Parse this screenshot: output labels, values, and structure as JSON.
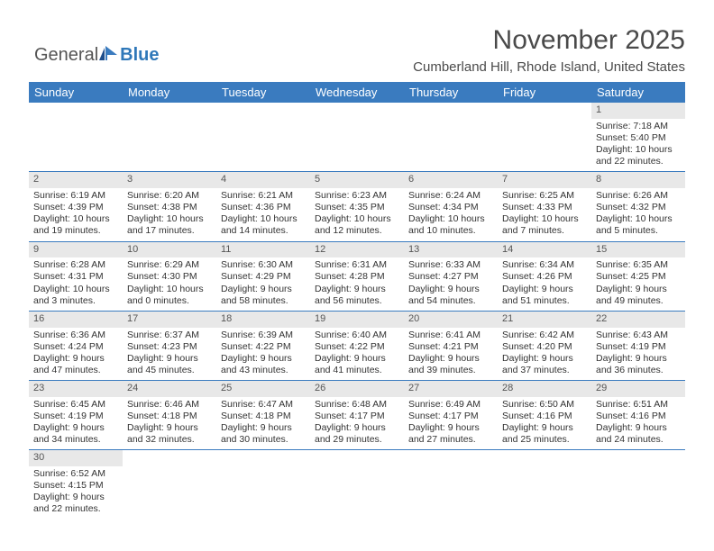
{
  "logo": {
    "part1": "General",
    "part2": "Blue"
  },
  "header": {
    "title": "November 2025",
    "location": "Cumberland Hill, Rhode Island, United States"
  },
  "colors": {
    "header_bg": "#3a7bbf",
    "header_text": "#ffffff",
    "daynum_bg": "#e8e8e8",
    "row_border": "#3a7bbf",
    "title_color": "#4a4a4a",
    "body_text": "#333333",
    "logo_blue": "#2f78b9"
  },
  "weekdays": [
    "Sunday",
    "Monday",
    "Tuesday",
    "Wednesday",
    "Thursday",
    "Friday",
    "Saturday"
  ],
  "weeks": [
    [
      null,
      null,
      null,
      null,
      null,
      null,
      {
        "d": "1",
        "sr": "Sunrise: 7:18 AM",
        "ss": "Sunset: 5:40 PM",
        "dl1": "Daylight: 10 hours",
        "dl2": "and 22 minutes."
      }
    ],
    [
      {
        "d": "2",
        "sr": "Sunrise: 6:19 AM",
        "ss": "Sunset: 4:39 PM",
        "dl1": "Daylight: 10 hours",
        "dl2": "and 19 minutes."
      },
      {
        "d": "3",
        "sr": "Sunrise: 6:20 AM",
        "ss": "Sunset: 4:38 PM",
        "dl1": "Daylight: 10 hours",
        "dl2": "and 17 minutes."
      },
      {
        "d": "4",
        "sr": "Sunrise: 6:21 AM",
        "ss": "Sunset: 4:36 PM",
        "dl1": "Daylight: 10 hours",
        "dl2": "and 14 minutes."
      },
      {
        "d": "5",
        "sr": "Sunrise: 6:23 AM",
        "ss": "Sunset: 4:35 PM",
        "dl1": "Daylight: 10 hours",
        "dl2": "and 12 minutes."
      },
      {
        "d": "6",
        "sr": "Sunrise: 6:24 AM",
        "ss": "Sunset: 4:34 PM",
        "dl1": "Daylight: 10 hours",
        "dl2": "and 10 minutes."
      },
      {
        "d": "7",
        "sr": "Sunrise: 6:25 AM",
        "ss": "Sunset: 4:33 PM",
        "dl1": "Daylight: 10 hours",
        "dl2": "and 7 minutes."
      },
      {
        "d": "8",
        "sr": "Sunrise: 6:26 AM",
        "ss": "Sunset: 4:32 PM",
        "dl1": "Daylight: 10 hours",
        "dl2": "and 5 minutes."
      }
    ],
    [
      {
        "d": "9",
        "sr": "Sunrise: 6:28 AM",
        "ss": "Sunset: 4:31 PM",
        "dl1": "Daylight: 10 hours",
        "dl2": "and 3 minutes."
      },
      {
        "d": "10",
        "sr": "Sunrise: 6:29 AM",
        "ss": "Sunset: 4:30 PM",
        "dl1": "Daylight: 10 hours",
        "dl2": "and 0 minutes."
      },
      {
        "d": "11",
        "sr": "Sunrise: 6:30 AM",
        "ss": "Sunset: 4:29 PM",
        "dl1": "Daylight: 9 hours",
        "dl2": "and 58 minutes."
      },
      {
        "d": "12",
        "sr": "Sunrise: 6:31 AM",
        "ss": "Sunset: 4:28 PM",
        "dl1": "Daylight: 9 hours",
        "dl2": "and 56 minutes."
      },
      {
        "d": "13",
        "sr": "Sunrise: 6:33 AM",
        "ss": "Sunset: 4:27 PM",
        "dl1": "Daylight: 9 hours",
        "dl2": "and 54 minutes."
      },
      {
        "d": "14",
        "sr": "Sunrise: 6:34 AM",
        "ss": "Sunset: 4:26 PM",
        "dl1": "Daylight: 9 hours",
        "dl2": "and 51 minutes."
      },
      {
        "d": "15",
        "sr": "Sunrise: 6:35 AM",
        "ss": "Sunset: 4:25 PM",
        "dl1": "Daylight: 9 hours",
        "dl2": "and 49 minutes."
      }
    ],
    [
      {
        "d": "16",
        "sr": "Sunrise: 6:36 AM",
        "ss": "Sunset: 4:24 PM",
        "dl1": "Daylight: 9 hours",
        "dl2": "and 47 minutes."
      },
      {
        "d": "17",
        "sr": "Sunrise: 6:37 AM",
        "ss": "Sunset: 4:23 PM",
        "dl1": "Daylight: 9 hours",
        "dl2": "and 45 minutes."
      },
      {
        "d": "18",
        "sr": "Sunrise: 6:39 AM",
        "ss": "Sunset: 4:22 PM",
        "dl1": "Daylight: 9 hours",
        "dl2": "and 43 minutes."
      },
      {
        "d": "19",
        "sr": "Sunrise: 6:40 AM",
        "ss": "Sunset: 4:22 PM",
        "dl1": "Daylight: 9 hours",
        "dl2": "and 41 minutes."
      },
      {
        "d": "20",
        "sr": "Sunrise: 6:41 AM",
        "ss": "Sunset: 4:21 PM",
        "dl1": "Daylight: 9 hours",
        "dl2": "and 39 minutes."
      },
      {
        "d": "21",
        "sr": "Sunrise: 6:42 AM",
        "ss": "Sunset: 4:20 PM",
        "dl1": "Daylight: 9 hours",
        "dl2": "and 37 minutes."
      },
      {
        "d": "22",
        "sr": "Sunrise: 6:43 AM",
        "ss": "Sunset: 4:19 PM",
        "dl1": "Daylight: 9 hours",
        "dl2": "and 36 minutes."
      }
    ],
    [
      {
        "d": "23",
        "sr": "Sunrise: 6:45 AM",
        "ss": "Sunset: 4:19 PM",
        "dl1": "Daylight: 9 hours",
        "dl2": "and 34 minutes."
      },
      {
        "d": "24",
        "sr": "Sunrise: 6:46 AM",
        "ss": "Sunset: 4:18 PM",
        "dl1": "Daylight: 9 hours",
        "dl2": "and 32 minutes."
      },
      {
        "d": "25",
        "sr": "Sunrise: 6:47 AM",
        "ss": "Sunset: 4:18 PM",
        "dl1": "Daylight: 9 hours",
        "dl2": "and 30 minutes."
      },
      {
        "d": "26",
        "sr": "Sunrise: 6:48 AM",
        "ss": "Sunset: 4:17 PM",
        "dl1": "Daylight: 9 hours",
        "dl2": "and 29 minutes."
      },
      {
        "d": "27",
        "sr": "Sunrise: 6:49 AM",
        "ss": "Sunset: 4:17 PM",
        "dl1": "Daylight: 9 hours",
        "dl2": "and 27 minutes."
      },
      {
        "d": "28",
        "sr": "Sunrise: 6:50 AM",
        "ss": "Sunset: 4:16 PM",
        "dl1": "Daylight: 9 hours",
        "dl2": "and 25 minutes."
      },
      {
        "d": "29",
        "sr": "Sunrise: 6:51 AM",
        "ss": "Sunset: 4:16 PM",
        "dl1": "Daylight: 9 hours",
        "dl2": "and 24 minutes."
      }
    ],
    [
      {
        "d": "30",
        "sr": "Sunrise: 6:52 AM",
        "ss": "Sunset: 4:15 PM",
        "dl1": "Daylight: 9 hours",
        "dl2": "and 22 minutes."
      },
      null,
      null,
      null,
      null,
      null,
      null
    ]
  ]
}
